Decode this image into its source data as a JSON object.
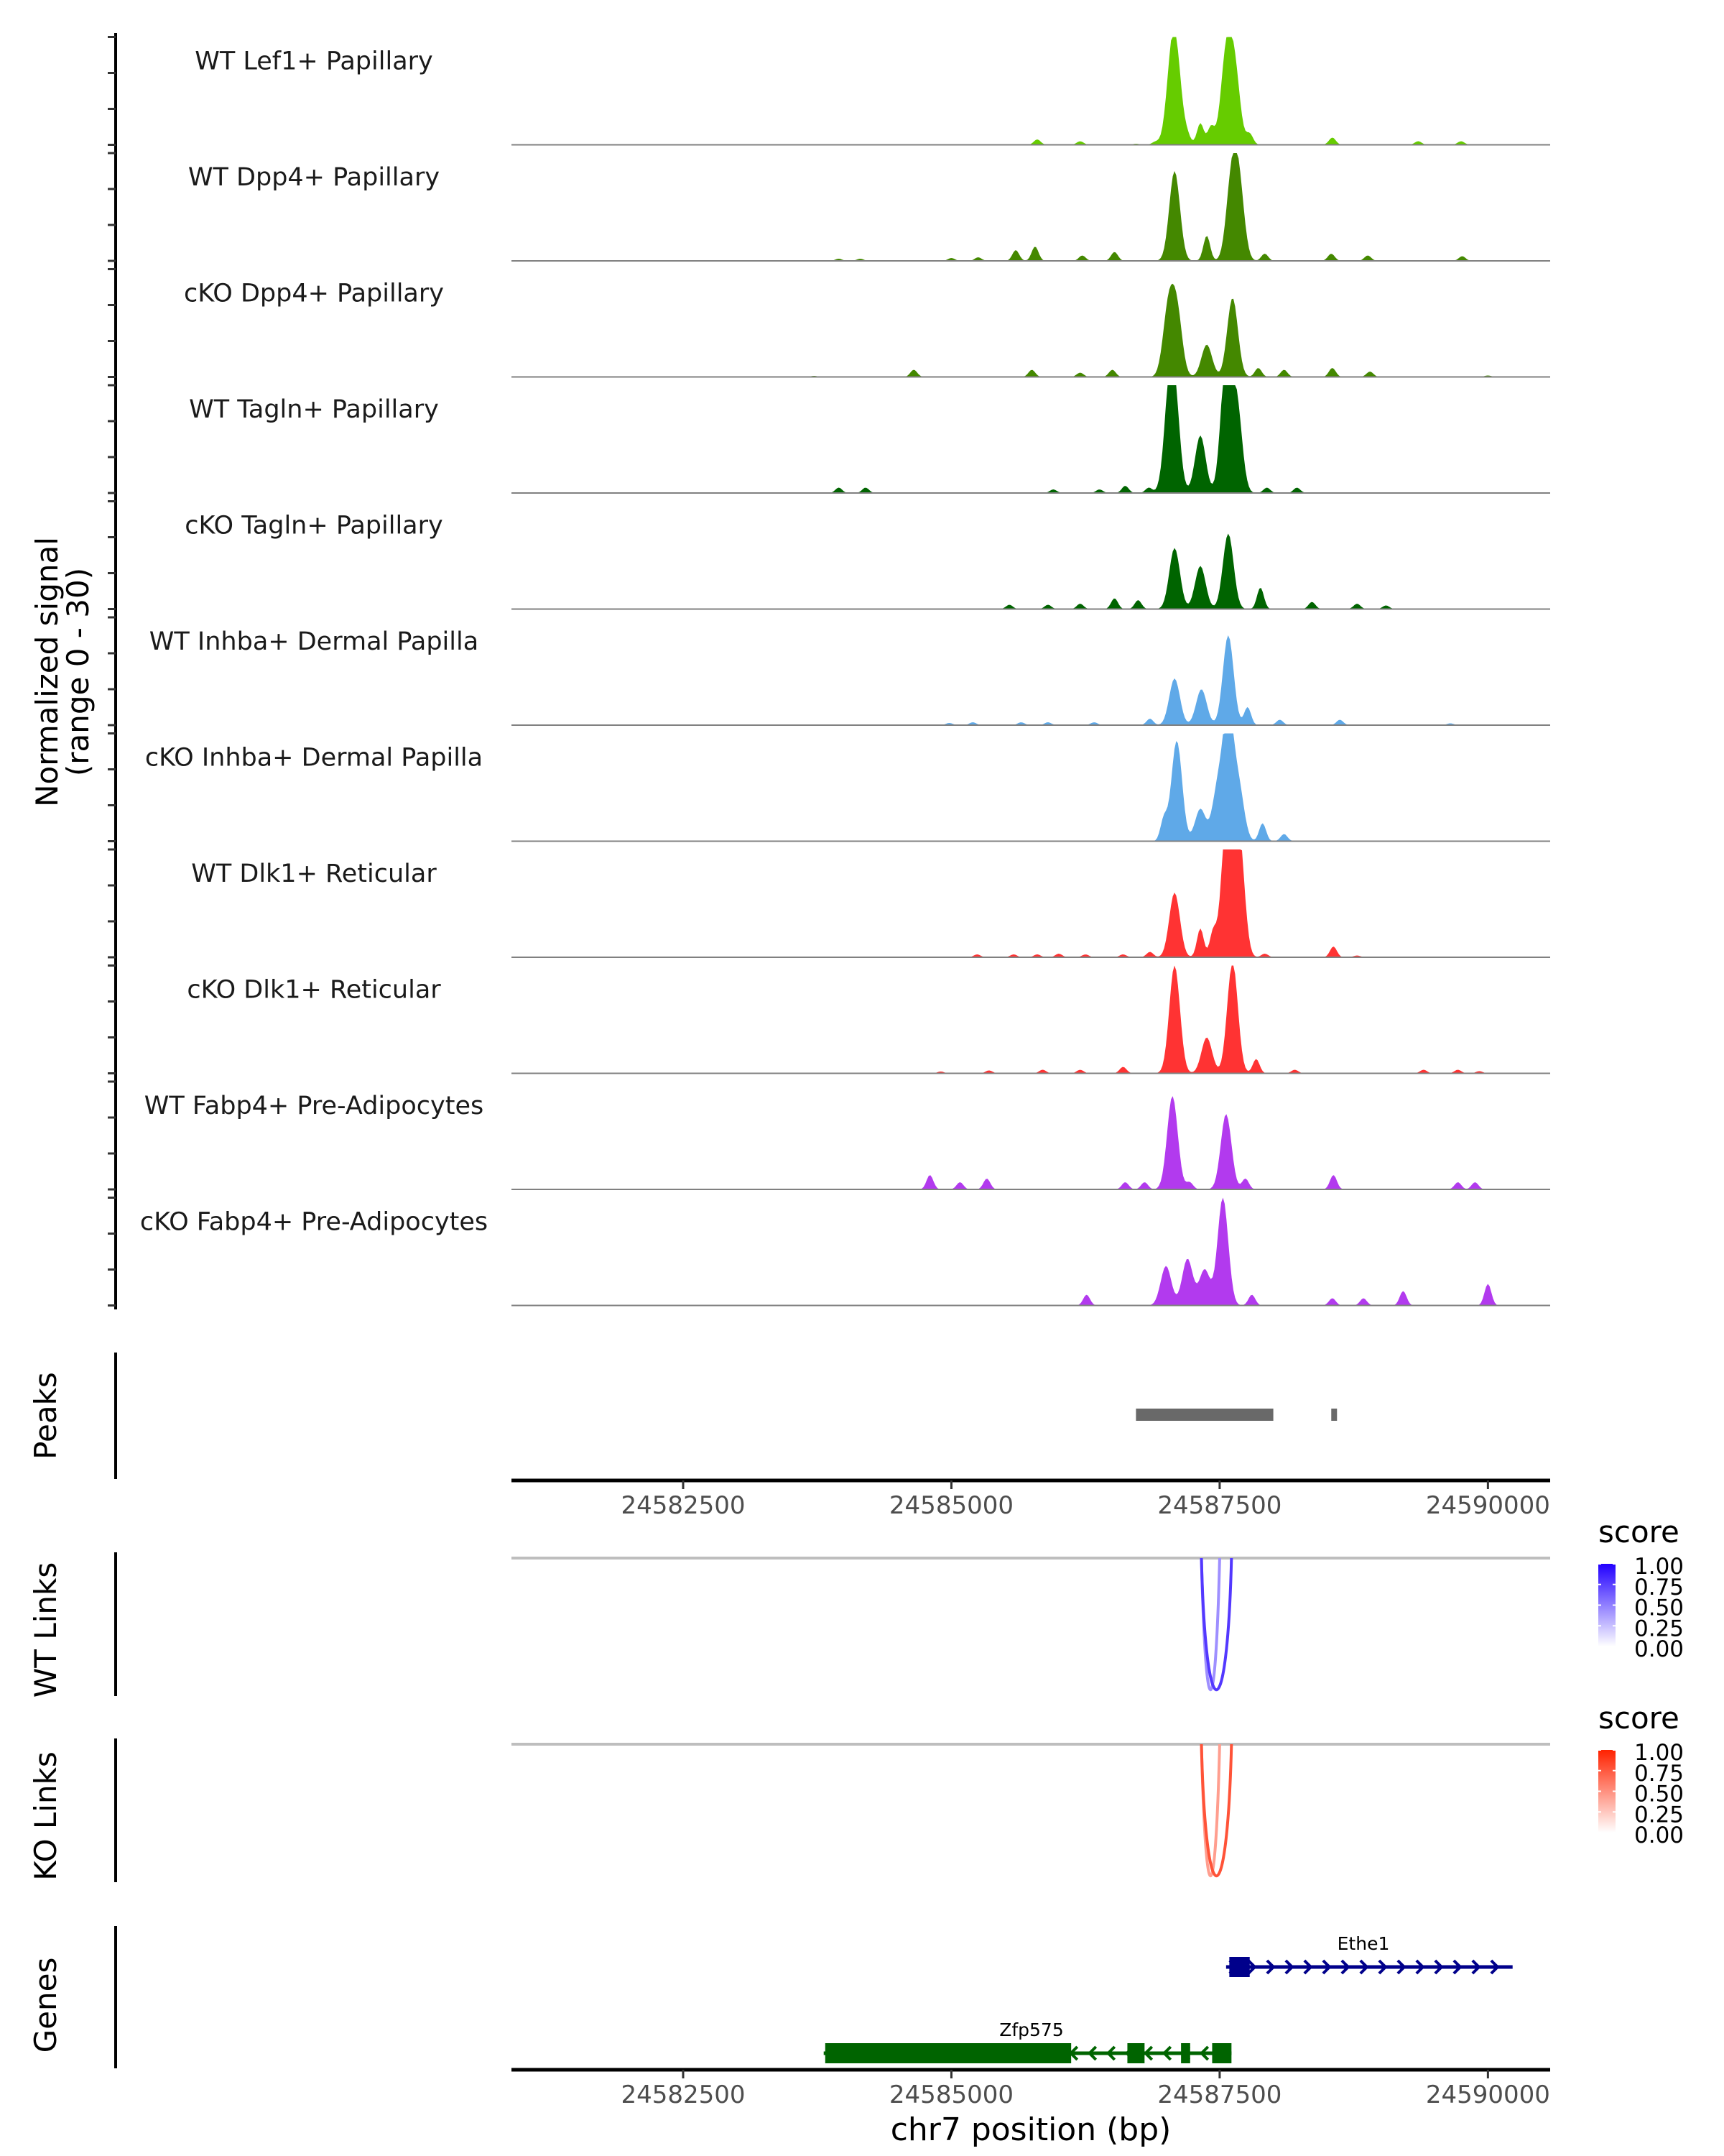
{
  "chart_data": {
    "type": "area",
    "title": "",
    "chromosome": "chr7",
    "xlabel": "chr7 position (bp)",
    "xlim": [
      24580900,
      24590580
    ],
    "xticks": [
      24582500,
      24585000,
      24587500,
      24590000
    ],
    "xtick_labels": [
      "24582500",
      "24585000",
      "24587500",
      "24590000"
    ],
    "coverage": {
      "ylabel_line1": "Normalized signal",
      "ylabel_line2": "(range 0 - 30)",
      "ylim": [
        0,
        30
      ],
      "yticks": [
        0,
        10,
        20,
        30
      ],
      "tracks": [
        {
          "name": "WT Lef1+ Papillary",
          "color": "#66CC00",
          "peaks": [
            [
              24586720,
              0.3
            ],
            [
              24586900,
              0.8
            ],
            [
              24587050,
              19
            ],
            [
              24587100,
              18
            ],
            [
              24587200,
              2
            ],
            [
              24587320,
              6
            ],
            [
              24587420,
              5
            ],
            [
              24587560,
              24
            ],
            [
              24587640,
              20
            ],
            [
              24587780,
              3
            ],
            [
              24588550,
              2
            ],
            [
              24589350,
              1
            ],
            [
              24589750,
              1
            ],
            [
              24585800,
              1.5
            ],
            [
              24586200,
              1
            ]
          ]
        },
        {
          "name": "WT Dpp4+ Papillary",
          "color": "#448800",
          "peaks": [
            [
              24585000,
              0.8
            ],
            [
              24585250,
              1
            ],
            [
              24585600,
              3
            ],
            [
              24585780,
              4
            ],
            [
              24586220,
              1.5
            ],
            [
              24586520,
              2.5
            ],
            [
              24587080,
              25
            ],
            [
              24587380,
              7
            ],
            [
              24587610,
              21
            ],
            [
              24587680,
              20
            ],
            [
              24587920,
              2
            ],
            [
              24588540,
              2
            ],
            [
              24588880,
              1.5
            ],
            [
              24589760,
              1.3
            ],
            [
              24583950,
              0.6
            ],
            [
              24584150,
              0.6
            ]
          ]
        },
        {
          "name": "cKO Dpp4+ Papillary",
          "color": "#448800",
          "peaks": [
            [
              24583720,
              0.3
            ],
            [
              24584650,
              2
            ],
            [
              24585750,
              2
            ],
            [
              24586200,
              1.2
            ],
            [
              24586500,
              2
            ],
            [
              24587020,
              18
            ],
            [
              24587100,
              18
            ],
            [
              24587380,
              9
            ],
            [
              24587620,
              22
            ],
            [
              24587860,
              2.5
            ],
            [
              24588100,
              2
            ],
            [
              24588550,
              2.5
            ],
            [
              24588900,
              1.5
            ],
            [
              24590000,
              0.4
            ]
          ]
        },
        {
          "name": "WT Tagln+ Papillary",
          "color": "#006400",
          "peaks": [
            [
              24583950,
              1.5
            ],
            [
              24584200,
              1.5
            ],
            [
              24585950,
              1
            ],
            [
              24586380,
              1
            ],
            [
              24586620,
              2
            ],
            [
              24586840,
              1.5
            ],
            [
              24587030,
              23
            ],
            [
              24587080,
              22
            ],
            [
              24587320,
              16
            ],
            [
              24587560,
              37
            ],
            [
              24587660,
              24
            ],
            [
              24587940,
              1.5
            ],
            [
              24588220,
              1.5
            ]
          ]
        },
        {
          "name": "cKO Tagln+ Papillary",
          "color": "#006400",
          "peaks": [
            [
              24585540,
              1.2
            ],
            [
              24585900,
              1.2
            ],
            [
              24586200,
              1.5
            ],
            [
              24586520,
              3
            ],
            [
              24586740,
              2.5
            ],
            [
              24587080,
              17
            ],
            [
              24587320,
              12
            ],
            [
              24587580,
              21
            ],
            [
              24587880,
              6
            ],
            [
              24588360,
              2
            ],
            [
              24588780,
              1.5
            ],
            [
              24589050,
              1
            ]
          ]
        },
        {
          "name": "WT Inhba+ Dermal Papilla",
          "color": "#5FA9E8",
          "peaks": [
            [
              24584980,
              0.6
            ],
            [
              24585200,
              0.8
            ],
            [
              24585650,
              0.8
            ],
            [
              24585900,
              0.8
            ],
            [
              24586330,
              0.8
            ],
            [
              24586850,
              1.8
            ],
            [
              24587080,
              13
            ],
            [
              24587330,
              10
            ],
            [
              24587580,
              25
            ],
            [
              24587760,
              5
            ],
            [
              24588060,
              1.5
            ],
            [
              24588620,
              1.5
            ],
            [
              24589650,
              0.5
            ]
          ]
        },
        {
          "name": "cKO Inhba+ Dermal Papilla",
          "color": "#5FA9E8",
          "peaks": [
            [
              24586980,
              6
            ],
            [
              24587100,
              28
            ],
            [
              24587320,
              9
            ],
            [
              24587480,
              14
            ],
            [
              24587580,
              35
            ],
            [
              24587680,
              14
            ],
            [
              24587900,
              5
            ],
            [
              24588100,
              2
            ]
          ]
        },
        {
          "name": "WT Dlk1+ Reticular",
          "color": "#FF3333",
          "peaks": [
            [
              24585240,
              0.8
            ],
            [
              24585580,
              0.8
            ],
            [
              24585800,
              0.8
            ],
            [
              24586000,
              1
            ],
            [
              24586250,
              0.8
            ],
            [
              24586600,
              0.8
            ],
            [
              24586850,
              1.5
            ],
            [
              24587080,
              18
            ],
            [
              24587320,
              8
            ],
            [
              24587440,
              7
            ],
            [
              24587570,
              42
            ],
            [
              24587680,
              34
            ],
            [
              24587920,
              1
            ],
            [
              24588560,
              3
            ],
            [
              24588780,
              0.5
            ]
          ]
        },
        {
          "name": "cKO Dlk1+ Reticular",
          "color": "#FF3333",
          "peaks": [
            [
              24584900,
              0.5
            ],
            [
              24585350,
              0.8
            ],
            [
              24585850,
              1
            ],
            [
              24586200,
              1
            ],
            [
              24586600,
              1.8
            ],
            [
              24587080,
              30
            ],
            [
              24587380,
              10
            ],
            [
              24587620,
              31
            ],
            [
              24587840,
              4
            ],
            [
              24588200,
              1
            ],
            [
              24589400,
              1
            ],
            [
              24589720,
              1
            ],
            [
              24589920,
              0.6
            ]
          ]
        },
        {
          "name": "WT Fabp4+ Pre-Adipocytes",
          "color": "#B23AEE",
          "peaks": [
            [
              24584800,
              4
            ],
            [
              24585080,
              2
            ],
            [
              24585330,
              3
            ],
            [
              24586620,
              2
            ],
            [
              24586800,
              2
            ],
            [
              24587060,
              26
            ],
            [
              24587220,
              2
            ],
            [
              24587560,
              21
            ],
            [
              24587740,
              3
            ],
            [
              24588560,
              4
            ],
            [
              24589720,
              2
            ],
            [
              24589880,
              2
            ]
          ]
        },
        {
          "name": "cKO Fabp4+ Pre-Adipocytes",
          "color": "#B23AEE",
          "peaks": [
            [
              24586260,
              3
            ],
            [
              24587000,
              11
            ],
            [
              24587200,
              13
            ],
            [
              24587360,
              10
            ],
            [
              24587530,
              30
            ],
            [
              24587800,
              3
            ],
            [
              24588550,
              2
            ],
            [
              24588840,
              2
            ],
            [
              24589210,
              4
            ],
            [
              24590000,
              6
            ]
          ]
        }
      ]
    },
    "peaks_track": {
      "label": "Peaks",
      "color": "#696969",
      "regions": [
        [
          24586720,
          24588000
        ],
        [
          24588540,
          24588590
        ]
      ]
    },
    "links": [
      {
        "label": "WT Links",
        "legend_title": "score",
        "low_color": "#FFFFFF",
        "high_color": "#2200FF",
        "legend_ticks": [
          "1.00",
          "0.75",
          "0.50",
          "0.25",
          "0.00"
        ],
        "items": [
          {
            "start": 24587330,
            "end": 24587500,
            "score": 0.4
          },
          {
            "start": 24587330,
            "end": 24587610,
            "score": 0.8
          }
        ]
      },
      {
        "label": "KO Links",
        "legend_title": "score",
        "low_color": "#FFFFFF",
        "high_color": "#FF2200",
        "legend_ticks": [
          "1.00",
          "0.75",
          "0.50",
          "0.25",
          "0.00"
        ],
        "items": [
          {
            "start": 24587330,
            "end": 24587500,
            "score": 0.4
          },
          {
            "start": 24587330,
            "end": 24587610,
            "score": 0.8
          }
        ]
      }
    ],
    "genes": {
      "label": "Genes",
      "items": [
        {
          "name": "Ethe1",
          "strand": "+",
          "color": "#00008B",
          "start": 24587560,
          "end": 24590230,
          "exons": [
            [
              24587590,
              24587780
            ]
          ]
        },
        {
          "name": "Zfp575",
          "strand": "-",
          "color": "#006400",
          "start": 24583810,
          "end": 24587610,
          "exons": [
            [
              24583824,
              24586116
            ],
            [
              24586640,
              24586800
            ],
            [
              24587140,
              24587225
            ],
            [
              24587430,
              24587610
            ]
          ]
        }
      ]
    }
  }
}
